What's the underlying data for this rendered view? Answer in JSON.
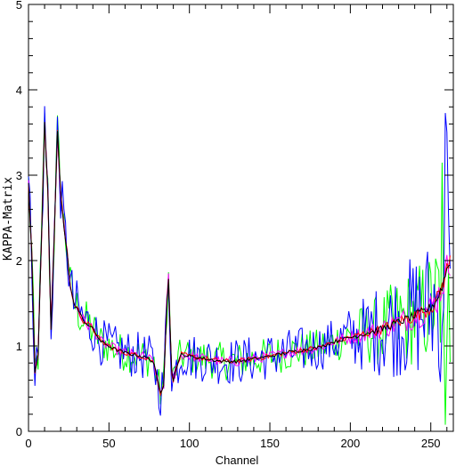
{
  "chart_data": {
    "type": "line",
    "title": "",
    "xlabel": "Channel",
    "ylabel": "KAPPA-Matrix",
    "xlim": [
      0,
      264
    ],
    "ylim": [
      0,
      5
    ],
    "x_ticks": [
      0,
      50,
      100,
      150,
      200,
      250
    ],
    "y_ticks": [
      0,
      1,
      2,
      3,
      4,
      5
    ],
    "grid": false,
    "legend": "none",
    "series_style": [
      {
        "color": "#00ff00"
      },
      {
        "color": "#0000ff"
      },
      {
        "color": "#ff00ff"
      },
      {
        "color": "#ff0000"
      },
      {
        "color": "#000000"
      }
    ],
    "profile": [
      [
        0,
        2.9
      ],
      [
        2,
        2.1
      ],
      [
        4,
        0.7
      ],
      [
        6,
        0.9
      ],
      [
        8,
        2.2
      ],
      [
        10,
        3.6
      ],
      [
        12,
        2.8
      ],
      [
        14,
        1.2
      ],
      [
        16,
        2.3
      ],
      [
        18,
        3.5
      ],
      [
        20,
        2.8
      ],
      [
        22,
        2.4
      ],
      [
        24,
        2.1
      ],
      [
        26,
        1.7
      ],
      [
        28,
        1.5
      ],
      [
        30,
        1.45
      ],
      [
        34,
        1.3
      ],
      [
        40,
        1.2
      ],
      [
        45,
        1.05
      ],
      [
        50,
        1.0
      ],
      [
        55,
        0.95
      ],
      [
        60,
        0.92
      ],
      [
        65,
        0.9
      ],
      [
        70,
        0.88
      ],
      [
        75,
        0.85
      ],
      [
        78,
        0.8
      ],
      [
        80,
        0.6
      ],
      [
        82,
        0.45
      ],
      [
        84,
        0.55
      ],
      [
        86,
        1.5
      ],
      [
        87,
        1.8
      ],
      [
        88,
        1.2
      ],
      [
        89,
        0.7
      ],
      [
        90,
        0.6
      ],
      [
        92,
        0.75
      ],
      [
        95,
        0.9
      ],
      [
        100,
        0.88
      ],
      [
        110,
        0.85
      ],
      [
        120,
        0.82
      ],
      [
        130,
        0.82
      ],
      [
        140,
        0.85
      ],
      [
        150,
        0.88
      ],
      [
        160,
        0.92
      ],
      [
        170,
        0.95
      ],
      [
        180,
        0.98
      ],
      [
        190,
        1.05
      ],
      [
        200,
        1.1
      ],
      [
        210,
        1.15
      ],
      [
        220,
        1.2
      ],
      [
        230,
        1.28
      ],
      [
        240,
        1.35
      ],
      [
        250,
        1.45
      ],
      [
        254,
        1.55
      ],
      [
        257,
        1.7
      ],
      [
        260,
        1.9
      ],
      [
        262,
        2.0
      ]
    ]
  }
}
